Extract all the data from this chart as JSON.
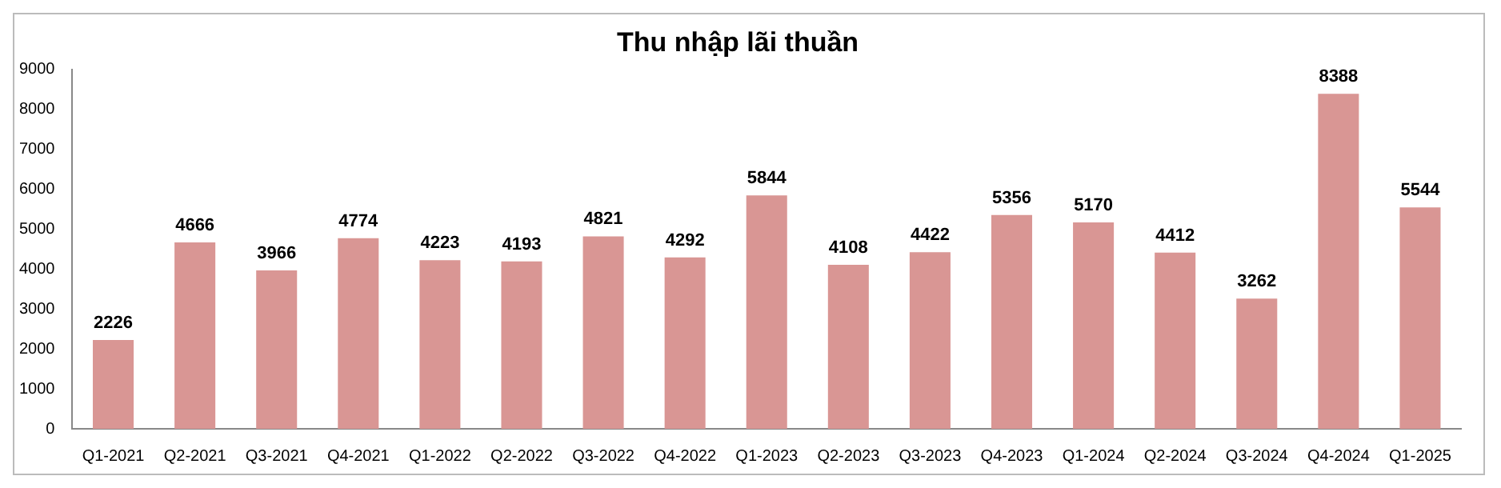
{
  "chart_data": {
    "type": "bar",
    "title": "Thu nhập lãi thuần",
    "categories": [
      "Q1-2021",
      "Q2-2021",
      "Q3-2021",
      "Q4-2021",
      "Q1-2022",
      "Q2-2022",
      "Q3-2022",
      "Q4-2022",
      "Q1-2023",
      "Q2-2023",
      "Q3-2023",
      "Q4-2023",
      "Q1-2024",
      "Q2-2024",
      "Q3-2024",
      "Q4-2024",
      "Q1-2025"
    ],
    "values": [
      2226,
      4666,
      3966,
      4774,
      4223,
      4193,
      4821,
      4292,
      5844,
      4108,
      4422,
      5356,
      5170,
      4412,
      3262,
      8388,
      5544
    ],
    "color": "#d99694",
    "ylim": [
      0,
      9000
    ],
    "yticks": [
      0,
      1000,
      2000,
      3000,
      4000,
      5000,
      6000,
      7000,
      8000,
      9000
    ],
    "grid": false,
    "legend": false,
    "data_labels": true
  }
}
